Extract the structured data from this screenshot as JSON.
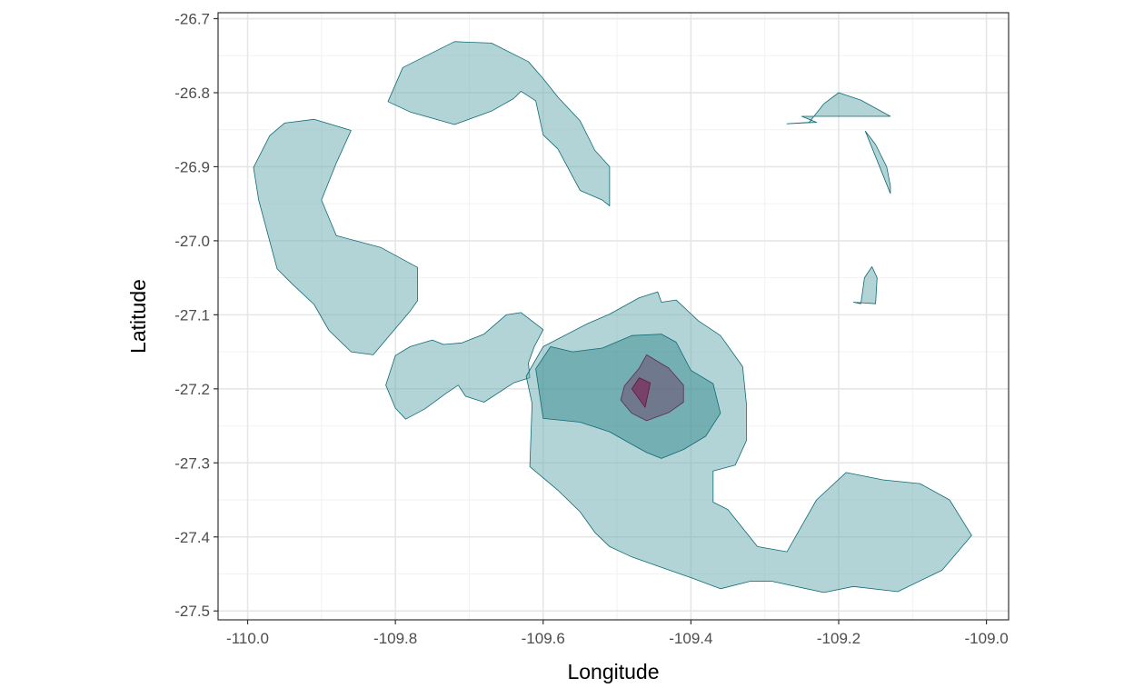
{
  "chart_data": {
    "type": "contour",
    "xlabel": "Longitude",
    "ylabel": "Latitude",
    "xlim": [
      -110.04,
      -108.97
    ],
    "ylim": [
      -27.512,
      -26.692
    ],
    "x_ticks": [
      -110.0,
      -109.8,
      -109.6,
      -109.4,
      -109.2,
      -109.0
    ],
    "x_tick_labels": [
      "-110.0",
      "-109.8",
      "-109.6",
      "-109.4",
      "-109.2",
      "-109.0"
    ],
    "y_ticks": [
      -26.7,
      -26.8,
      -26.9,
      -27.0,
      -27.1,
      -27.2,
      -27.3,
      -27.4,
      -27.5
    ],
    "y_tick_labels": [
      "-26.7",
      "-26.8",
      "-26.9",
      "-27.0",
      "-27.1",
      "-27.2",
      "-27.3",
      "-27.4",
      "-27.5"
    ],
    "grid": true,
    "legend": "none",
    "levels": [
      {
        "level": 1,
        "fill": "#68aab0",
        "opacity": 0.5,
        "stroke": "#0e6a73",
        "polygons": [
          [
            [
              -109.81,
              -26.812
            ],
            [
              -109.79,
              -26.766
            ],
            [
              -109.72,
              -26.731
            ],
            [
              -109.67,
              -26.733
            ],
            [
              -109.62,
              -26.758
            ],
            [
              -109.6,
              -26.781
            ],
            [
              -109.58,
              -26.806
            ],
            [
              -109.55,
              -26.838
            ],
            [
              -109.53,
              -26.878
            ],
            [
              -109.51,
              -26.9
            ],
            [
              -109.51,
              -26.953
            ],
            [
              -109.52,
              -26.945
            ],
            [
              -109.55,
              -26.932
            ],
            [
              -109.58,
              -26.876
            ],
            [
              -109.6,
              -26.857
            ],
            [
              -109.61,
              -26.811
            ],
            [
              -109.63,
              -26.798
            ],
            [
              -109.64,
              -26.808
            ],
            [
              -109.67,
              -26.825
            ],
            [
              -109.72,
              -26.843
            ],
            [
              -109.78,
              -26.826
            ]
          ],
          [
            [
              -109.992,
              -26.901
            ],
            [
              -109.97,
              -26.858
            ],
            [
              -109.95,
              -26.841
            ],
            [
              -109.91,
              -26.836
            ],
            [
              -109.86,
              -26.851
            ],
            [
              -109.88,
              -26.895
            ],
            [
              -109.9,
              -26.945
            ],
            [
              -109.88,
              -26.993
            ],
            [
              -109.82,
              -27.009
            ],
            [
              -109.77,
              -27.036
            ],
            [
              -109.77,
              -27.081
            ],
            [
              -109.78,
              -27.095
            ],
            [
              -109.83,
              -27.154
            ],
            [
              -109.86,
              -27.15
            ],
            [
              -109.89,
              -27.121
            ],
            [
              -109.91,
              -27.086
            ],
            [
              -109.94,
              -27.058
            ],
            [
              -109.96,
              -27.038
            ],
            [
              -109.985,
              -26.945
            ]
          ],
          [
            [
              -109.813,
              -27.195
            ],
            [
              -109.8,
              -27.155
            ],
            [
              -109.78,
              -27.143
            ],
            [
              -109.75,
              -27.134
            ],
            [
              -109.735,
              -27.14
            ],
            [
              -109.71,
              -27.138
            ],
            [
              -109.68,
              -27.126
            ],
            [
              -109.65,
              -27.1
            ],
            [
              -109.63,
              -27.097
            ],
            [
              -109.6,
              -27.12
            ],
            [
              -109.612,
              -27.143
            ],
            [
              -109.62,
              -27.165
            ],
            [
              -109.618,
              -27.185
            ],
            [
              -109.64,
              -27.192
            ],
            [
              -109.68,
              -27.218
            ],
            [
              -109.705,
              -27.21
            ],
            [
              -109.715,
              -27.195
            ],
            [
              -109.73,
              -27.205
            ],
            [
              -109.76,
              -27.227
            ],
            [
              -109.786,
              -27.241
            ],
            [
              -109.8,
              -27.226
            ]
          ],
          [
            [
              -109.623,
              -27.183
            ],
            [
              -109.615,
              -27.22
            ],
            [
              -109.618,
              -27.305
            ],
            [
              -109.58,
              -27.337
            ],
            [
              -109.55,
              -27.366
            ],
            [
              -109.53,
              -27.394
            ],
            [
              -109.51,
              -27.413
            ],
            [
              -109.48,
              -27.427
            ],
            [
              -109.44,
              -27.441
            ],
            [
              -109.4,
              -27.455
            ],
            [
              -109.36,
              -27.47
            ],
            [
              -109.32,
              -27.46
            ],
            [
              -109.29,
              -27.46
            ],
            [
              -109.22,
              -27.475
            ],
            [
              -109.18,
              -27.467
            ],
            [
              -109.12,
              -27.474
            ],
            [
              -109.06,
              -27.445
            ],
            [
              -109.02,
              -27.398
            ],
            [
              -109.05,
              -27.35
            ],
            [
              -109.09,
              -27.328
            ],
            [
              -109.14,
              -27.323
            ],
            [
              -109.19,
              -27.313
            ],
            [
              -109.23,
              -27.35
            ],
            [
              -109.27,
              -27.42
            ],
            [
              -109.31,
              -27.413
            ],
            [
              -109.33,
              -27.388
            ],
            [
              -109.35,
              -27.363
            ],
            [
              -109.37,
              -27.353
            ],
            [
              -109.37,
              -27.311
            ],
            [
              -109.34,
              -27.303
            ],
            [
              -109.325,
              -27.27
            ],
            [
              -109.325,
              -27.22
            ],
            [
              -109.33,
              -27.17
            ],
            [
              -109.36,
              -27.128
            ],
            [
              -109.39,
              -27.108
            ],
            [
              -109.42,
              -27.08
            ],
            [
              -109.44,
              -27.083
            ],
            [
              -109.445,
              -27.069
            ],
            [
              -109.47,
              -27.077
            ],
            [
              -109.51,
              -27.099
            ],
            [
              -109.54,
              -27.112
            ],
            [
              -109.6,
              -27.143
            ]
          ],
          [
            [
              -109.13,
              -26.832
            ],
            [
              -109.17,
              -26.81
            ],
            [
              -109.2,
              -26.8
            ],
            [
              -109.22,
              -26.815
            ],
            [
              -109.24,
              -26.84
            ],
            [
              -109.27,
              -26.842
            ],
            [
              -109.23,
              -26.84
            ],
            [
              -109.25,
              -26.832
            ]
          ],
          [
            [
              -109.164,
              -26.852
            ],
            [
              -109.15,
              -26.87
            ],
            [
              -109.135,
              -26.9
            ],
            [
              -109.13,
              -26.926
            ],
            [
              -109.13,
              -26.936
            ]
          ],
          [
            [
              -109.18,
              -27.083
            ],
            [
              -109.17,
              -27.085
            ],
            [
              -109.165,
              -27.05
            ],
            [
              -109.155,
              -27.035
            ],
            [
              -109.148,
              -27.05
            ],
            [
              -109.15,
              -27.085
            ]
          ]
        ]
      },
      {
        "level": 2,
        "fill": "#3f8f96",
        "opacity": 0.55,
        "stroke": "#0e6a73",
        "polygons": [
          [
            [
              -109.61,
              -27.173
            ],
            [
              -109.59,
              -27.143
            ],
            [
              -109.56,
              -27.15
            ],
            [
              -109.52,
              -27.145
            ],
            [
              -109.48,
              -27.128
            ],
            [
              -109.44,
              -27.126
            ],
            [
              -109.42,
              -27.137
            ],
            [
              -109.4,
              -27.175
            ],
            [
              -109.37,
              -27.193
            ],
            [
              -109.36,
              -27.233
            ],
            [
              -109.38,
              -27.264
            ],
            [
              -109.41,
              -27.282
            ],
            [
              -109.44,
              -27.294
            ],
            [
              -109.46,
              -27.286
            ],
            [
              -109.48,
              -27.275
            ],
            [
              -109.51,
              -27.258
            ],
            [
              -109.55,
              -27.245
            ],
            [
              -109.6,
              -27.24
            ]
          ]
        ]
      },
      {
        "level": 3,
        "fill": "#6e4a6e",
        "opacity": 0.55,
        "stroke": "#5a2a5a",
        "polygons": [
          [
            [
              -109.495,
              -27.215
            ],
            [
              -109.49,
              -27.196
            ],
            [
              -109.47,
              -27.172
            ],
            [
              -109.46,
              -27.154
            ],
            [
              -109.43,
              -27.172
            ],
            [
              -109.41,
              -27.195
            ],
            [
              -109.41,
              -27.218
            ],
            [
              -109.43,
              -27.232
            ],
            [
              -109.46,
              -27.243
            ],
            [
              -109.48,
              -27.233
            ]
          ]
        ]
      },
      {
        "level": 4,
        "fill": "#7a2a5a",
        "opacity": 0.7,
        "stroke": "#5a1a40",
        "polygons": [
          [
            [
              -109.48,
              -27.2
            ],
            [
              -109.47,
              -27.185
            ],
            [
              -109.455,
              -27.192
            ],
            [
              -109.462,
              -27.225
            ]
          ]
        ]
      }
    ]
  }
}
